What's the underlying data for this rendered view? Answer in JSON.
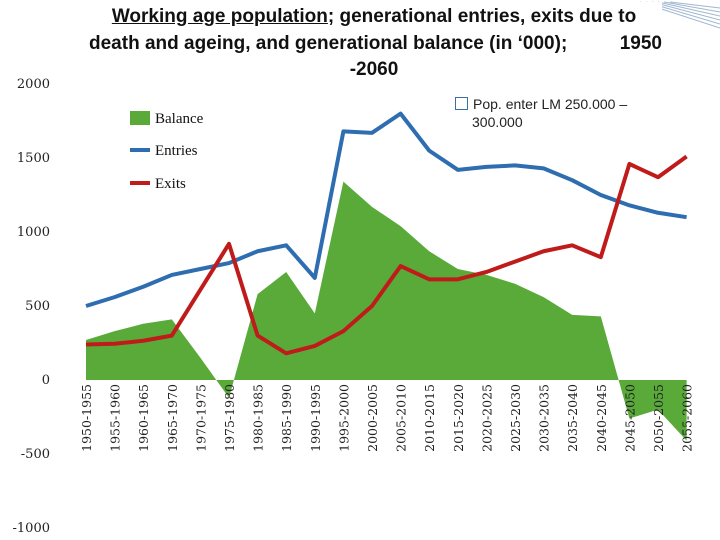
{
  "title": {
    "underlined": "Working age population",
    "line1_rest": "; generational entries, exits due to",
    "line2": "death and ageing, and generational balance (in ‘000);",
    "year_start": "1950",
    "line3": "-2060"
  },
  "note": {
    "line1": "Pop. enter LM 250.000 –",
    "line2": "300.000"
  },
  "colors": {
    "balance": "#5aaa3a",
    "entries": "#2e6db0",
    "exits": "#c01b1b"
  },
  "chart_data": {
    "type": "line",
    "title": "Working age population; generational entries, exits due to death and ageing, and generational balance (in ‘000); 1950-2060",
    "categories": [
      "1950-1955",
      "1955-1960",
      "1960-1965",
      "1965-1970",
      "1970-1975",
      "1975-1980",
      "1980-1985",
      "1985-1990",
      "1990-1995",
      "1995-2000",
      "2000-2005",
      "2005-2010",
      "2010-2015",
      "2015-2020",
      "2020-2025",
      "2025-2030",
      "2030-2035",
      "2035-2040",
      "2040-2045",
      "2045-2050",
      "2050-2055",
      "2055-2060"
    ],
    "ylim": [
      -1000,
      2000
    ],
    "yticks": [
      2000,
      1500,
      1000,
      500,
      0,
      -500,
      -1000
    ],
    "series": [
      {
        "name": "Balance",
        "kind": "area",
        "values": [
          270,
          330,
          380,
          410,
          150,
          -120,
          580,
          730,
          450,
          1340,
          1170,
          1040,
          870,
          750,
          710,
          650,
          560,
          440,
          430,
          -260,
          -200,
          -410
        ]
      },
      {
        "name": "Entries",
        "kind": "line",
        "values": [
          500,
          560,
          630,
          710,
          750,
          790,
          870,
          910,
          690,
          1680,
          1670,
          1800,
          1550,
          1420,
          1440,
          1450,
          1430,
          1350,
          1250,
          1180,
          1130,
          1100
        ]
      },
      {
        "name": "Exits",
        "kind": "line",
        "values": [
          240,
          245,
          265,
          300,
          610,
          920,
          300,
          180,
          230,
          330,
          500,
          770,
          680,
          680,
          730,
          800,
          870,
          910,
          830,
          1460,
          1370,
          1510
        ]
      }
    ],
    "legend": [
      "Balance",
      "Entries",
      "Exits"
    ]
  }
}
